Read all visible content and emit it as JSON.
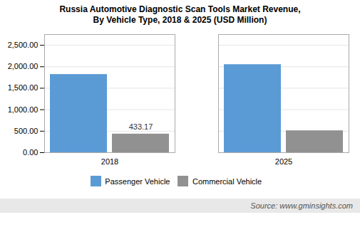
{
  "chart_data": {
    "type": "bar",
    "title": "Russia Automotive Diagnostic Scan Tools Market Revenue,\nBy Vehicle Type, 2018 & 2025 (USD Million)",
    "categories": [
      "2018",
      "2025"
    ],
    "series": [
      {
        "name": "Passenger Vehicle",
        "color": "#5B9BD5",
        "values": [
          1820.0,
          2050.0
        ]
      },
      {
        "name": "Commercial Vehicle",
        "color": "#919191",
        "values": [
          433.17,
          510.0
        ]
      }
    ],
    "annotations": [
      {
        "text": "433.17",
        "category": "2018",
        "series": "Commercial Vehicle"
      }
    ],
    "ylim": [
      0,
      2750
    ],
    "yticks": [
      {
        "value": 0,
        "label": "0.00"
      },
      {
        "value": 500,
        "label": "500.00"
      },
      {
        "value": 1000,
        "label": "1,000.00"
      },
      {
        "value": 1500,
        "label": "1,500.00"
      },
      {
        "value": 2000,
        "label": "2,000.00"
      },
      {
        "value": 2500,
        "label": "2,500.00"
      }
    ],
    "grid": true,
    "legend": "bottom",
    "caption": "Source: www.gminsights.com"
  }
}
